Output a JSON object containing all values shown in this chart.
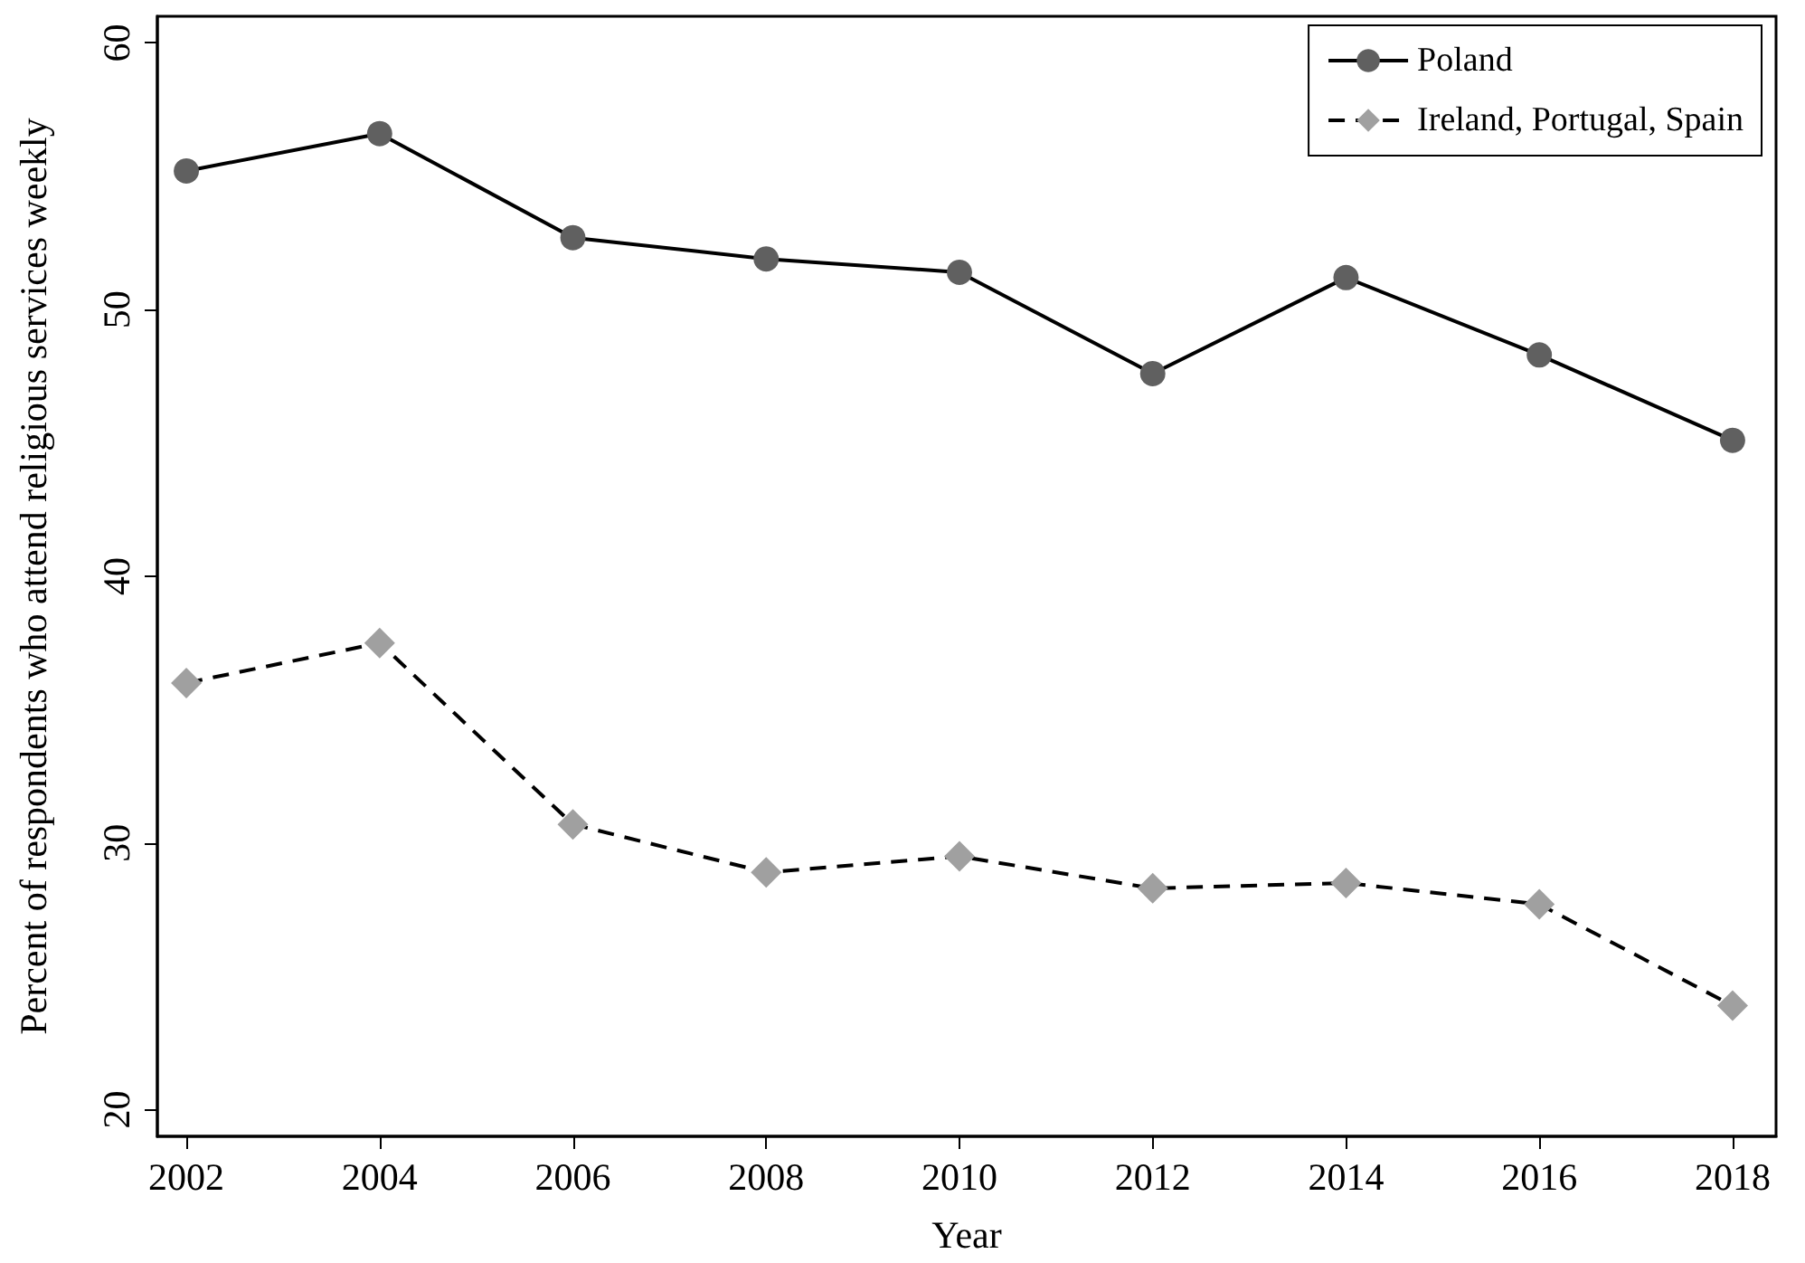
{
  "chart_data": {
    "type": "line",
    "xlabel": "Year",
    "ylabel": "Percent of respondents who attend religious services weekly",
    "x": [
      2002,
      2004,
      2006,
      2008,
      2010,
      2012,
      2014,
      2016,
      2018
    ],
    "series": [
      {
        "name": "Poland",
        "color": "#606060",
        "marker": "circle",
        "line_style": "solid",
        "values": [
          55.2,
          56.6,
          52.7,
          51.9,
          51.4,
          47.6,
          51.2,
          48.3,
          45.1
        ]
      },
      {
        "name": "Ireland, Portugal, Spain",
        "color": "#a0a0a0",
        "marker": "diamond",
        "line_style": "dashed",
        "values": [
          36.0,
          37.5,
          30.7,
          28.9,
          29.5,
          28.3,
          28.5,
          27.7,
          23.9
        ]
      }
    ],
    "xlim": [
      2001.7,
      2018.45
    ],
    "xticks": [
      2002,
      2004,
      2006,
      2008,
      2010,
      2012,
      2014,
      2016,
      2018
    ],
    "ylim": [
      19,
      61
    ],
    "yticks": [
      20,
      30,
      40,
      50,
      60
    ],
    "grid": false,
    "legend": "top right"
  }
}
